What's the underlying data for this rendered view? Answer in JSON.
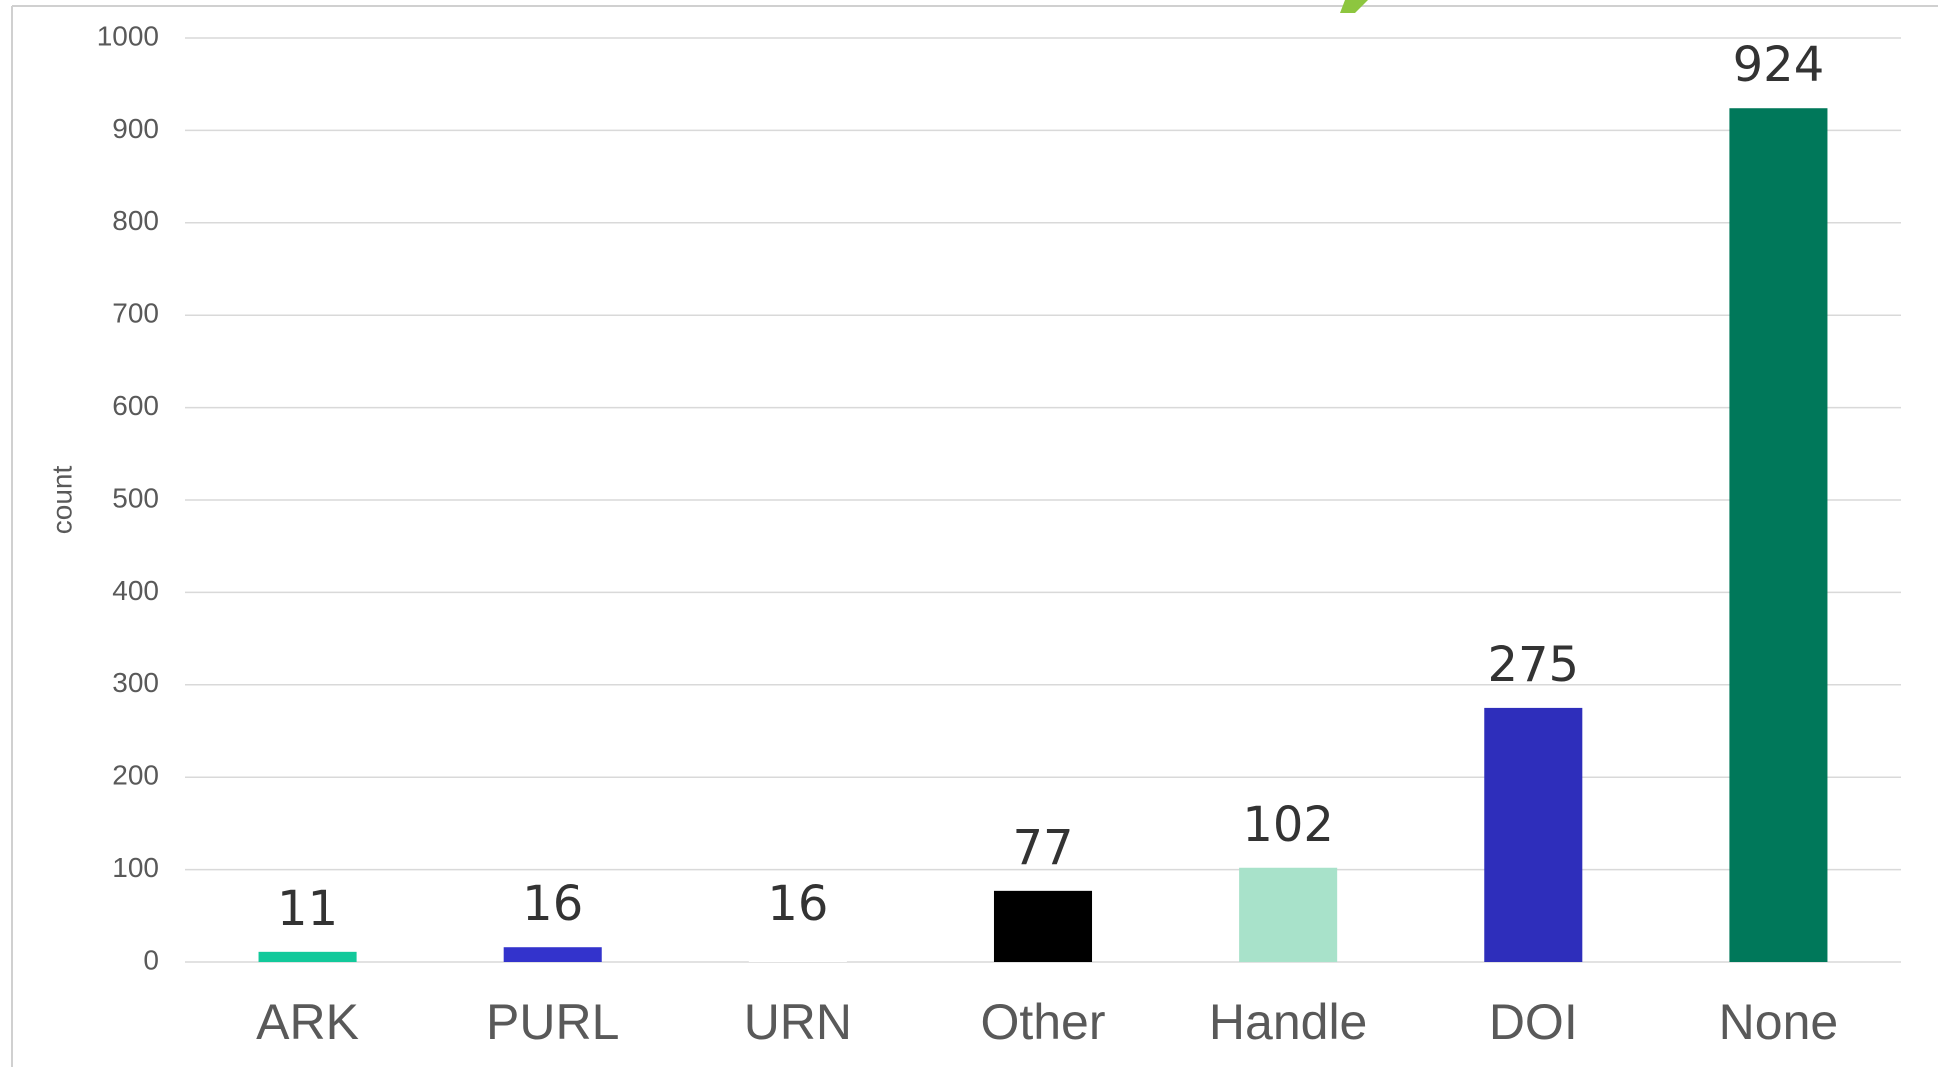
{
  "chart_data": {
    "type": "bar",
    "y_label": "count",
    "categories": [
      "ARK",
      "PURL",
      "URN",
      "Other",
      "Handle",
      "DOI",
      "None"
    ],
    "values": [
      11,
      16,
      16,
      77,
      102,
      275,
      924
    ],
    "colors": [
      "#12c99b",
      "#3333cc",
      "#ffffff",
      "#000000",
      "#a8e2ca",
      "#2e2ebb",
      "#00785a"
    ],
    "ylim": [
      0,
      1000
    ],
    "yticks": [
      0,
      100,
      200,
      300,
      400,
      500,
      600,
      700,
      800,
      900,
      1000
    ],
    "grid": true
  }
}
